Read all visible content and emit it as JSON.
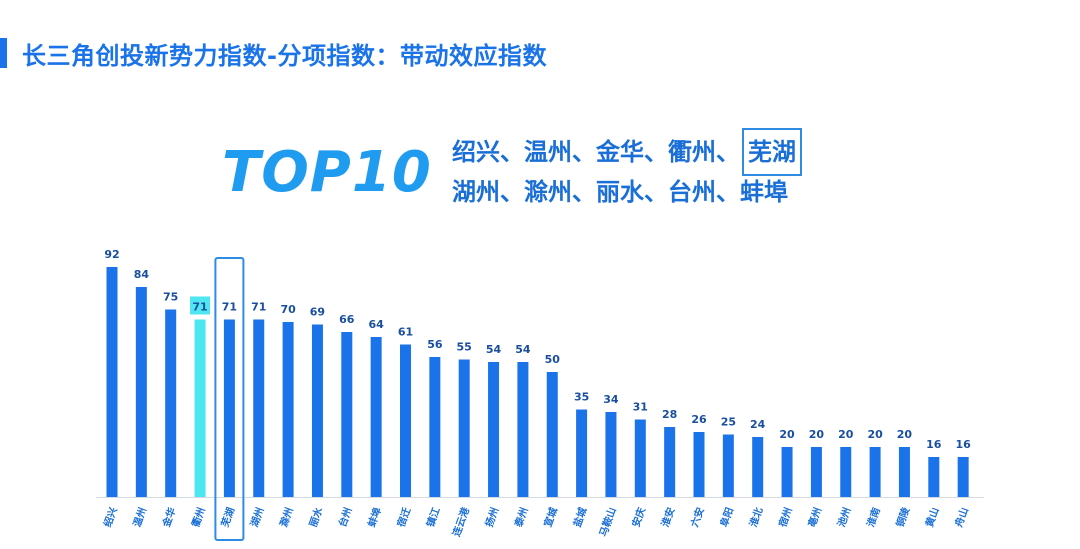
{
  "header": {
    "title": "长三角创投新势力指数-分项指数：带动效应指数"
  },
  "top10": {
    "label": "TOP10",
    "rows": [
      [
        {
          "name": "绍兴、"
        },
        {
          "name": "温州、"
        },
        {
          "name": "金华、"
        },
        {
          "name": "衢州、"
        },
        {
          "name": "芜湖",
          "highlight": true
        }
      ],
      [
        {
          "name": "湖州、"
        },
        {
          "name": "滁州、"
        },
        {
          "name": "丽水、"
        },
        {
          "name": "台州、"
        },
        {
          "name": "蚌埠"
        }
      ]
    ]
  },
  "colors": {
    "bar": "#1a73e8",
    "bar_highlight": "#4ee6f0",
    "outline": "#2e8be6",
    "label_box": "#4ee6f0"
  },
  "chart_data": {
    "type": "bar",
    "categories": [
      "绍兴",
      "温州",
      "金华",
      "衢州",
      "芜湖",
      "湖州",
      "滁州",
      "丽水",
      "台州",
      "蚌埠",
      "宿迁",
      "镇江",
      "连云港",
      "扬州",
      "泰州",
      "宣城",
      "盐城",
      "马鞍山",
      "安庆",
      "淮安",
      "六安",
      "阜阳",
      "淮北",
      "宿州",
      "亳州",
      "池州",
      "淮南",
      "铜陵",
      "黄山",
      "舟山"
    ],
    "values": [
      92,
      84,
      75,
      71,
      71,
      71,
      70,
      69,
      66,
      64,
      61,
      56,
      55,
      54,
      54,
      50,
      35,
      34,
      31,
      28,
      26,
      25,
      24,
      20,
      20,
      20,
      20,
      20,
      16,
      16
    ],
    "highlight_fill": "衢州",
    "highlight_outline": "芜湖",
    "ylim": [
      0,
      100
    ],
    "grid": false,
    "legend": "none"
  }
}
